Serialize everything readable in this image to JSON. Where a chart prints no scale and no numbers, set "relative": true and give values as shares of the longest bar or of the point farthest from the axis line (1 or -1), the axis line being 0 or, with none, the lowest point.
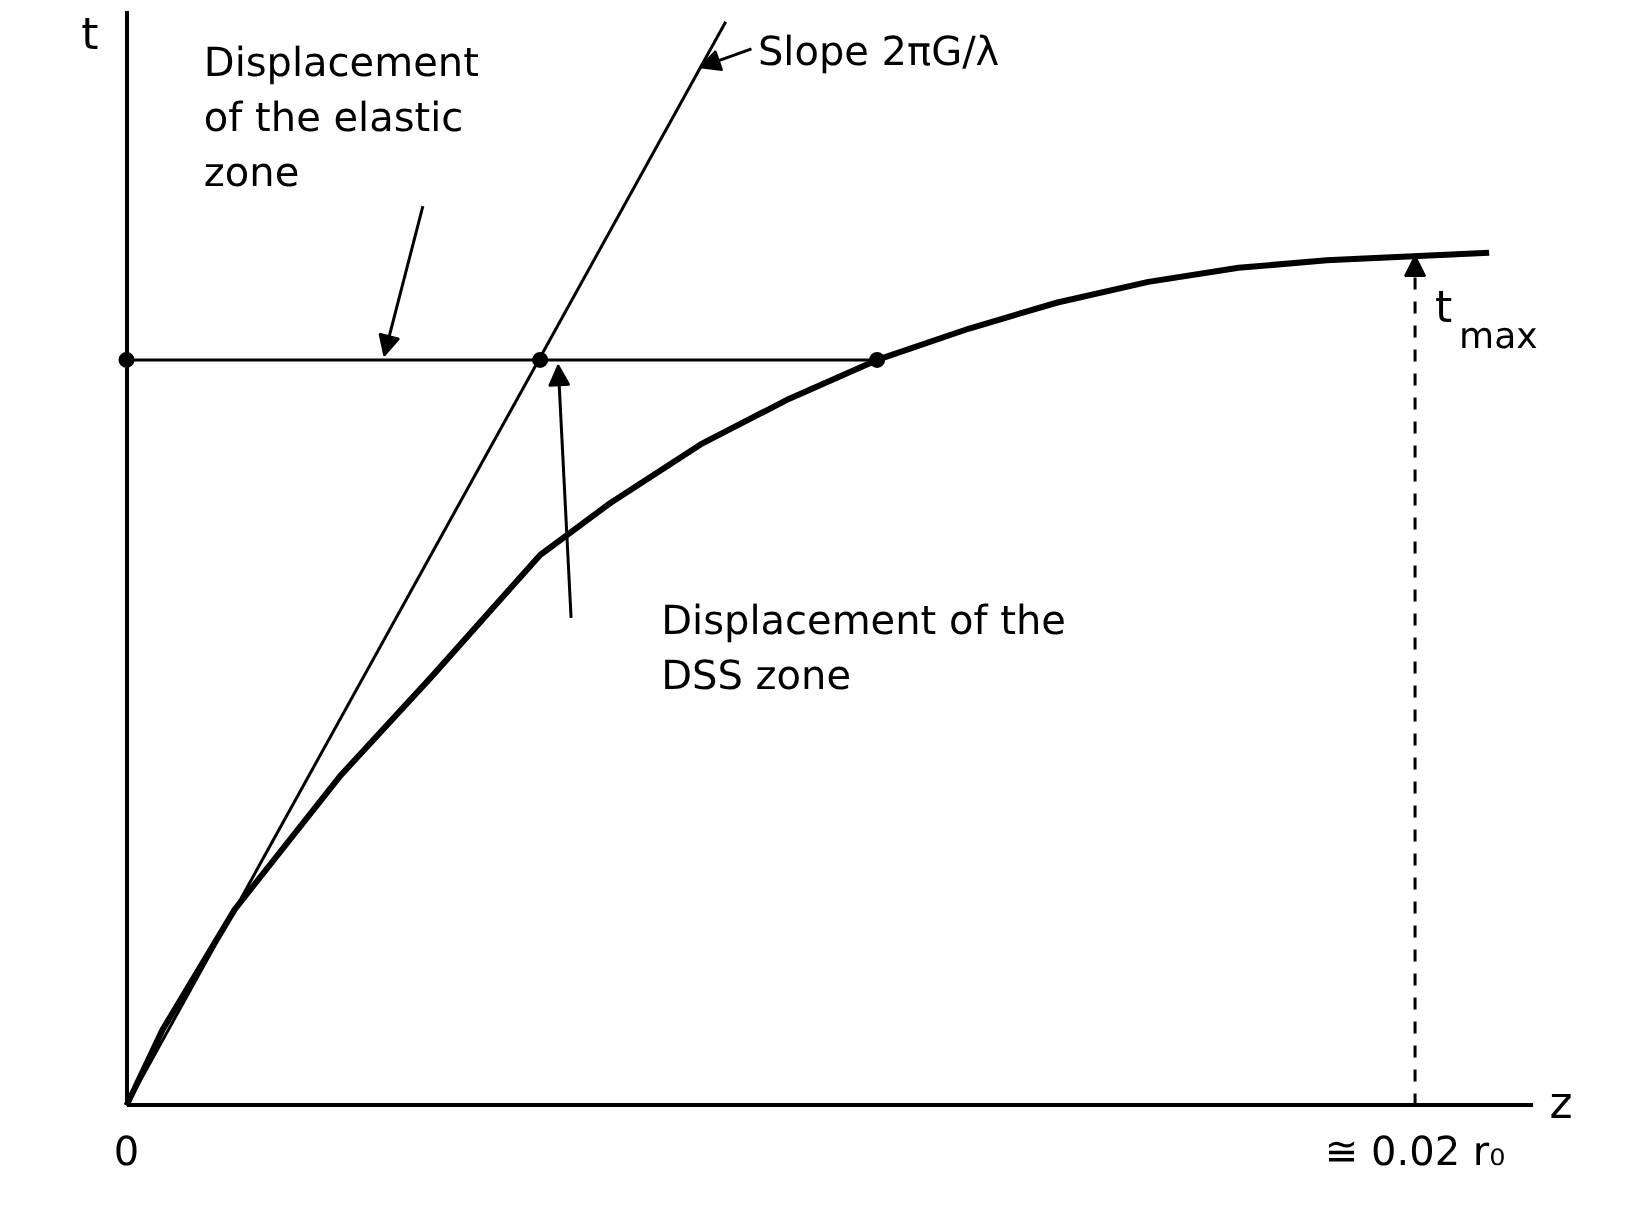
{
  "chart_data": {
    "type": "line",
    "relative": true,
    "xlabel": "z",
    "ylabel": "t",
    "x": [
      0,
      0.00056,
      0.00168,
      0.00333,
      0.00474,
      0.00642,
      0.00751,
      0.00891,
      0.01028,
      0.01165,
      0.01308,
      0.01445,
      0.01586,
      0.01726,
      0.01863,
      0.02115
    ],
    "series": [
      {
        "color": "#000000",
        "values": [
          0,
          0.07,
          0.181,
          0.305,
          0.396,
          0.508,
          0.556,
          0.61,
          0.652,
          0.688,
          0.717,
          0.741,
          0.76,
          0.773,
          0.78,
          0.787
        ]
      },
      {
        "color": "#000000",
        "x": [
          0,
          0.0093
        ],
        "values": [
          0,
          1.0
        ]
      },
      {
        "color": "#000000",
        "x": [
          0,
          0.00642,
          0.01165
        ],
        "values": [
          0.688,
          0.688,
          0.688
        ],
        "marker": "circle"
      }
    ],
    "xlim": [
      0,
      0.02184
    ],
    "xticks": [
      0,
      {
        "value": 0.02,
        "label": "≅ 0.02 r₀"
      }
    ],
    "annotations": [
      "Displacement\nof the elastic\nzone",
      "Slope 2πG/λ",
      "Displacement of the\nDSS zone",
      {
        "text": "t$_{max}$",
        "x": 0.02,
        "y": 0.784
      }
    ],
    "grid": false
  }
}
